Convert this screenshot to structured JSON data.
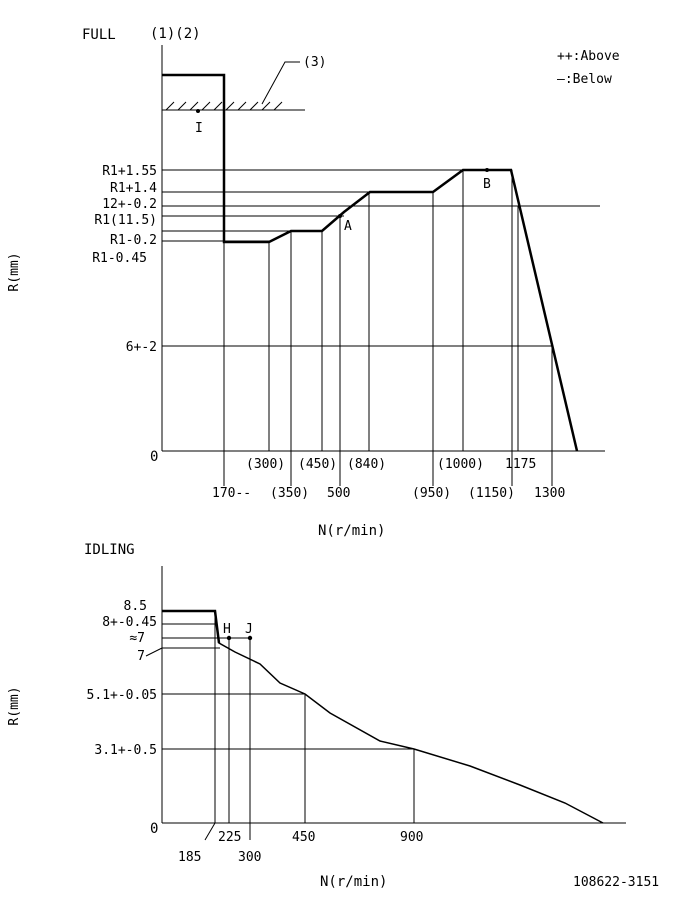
{
  "full": {
    "title": "FULL",
    "markers": "(1)(2)",
    "ref3": "(3)",
    "legend_above": "++:Above",
    "legend_below": "—:Below",
    "ylabel": "R(mm)",
    "xlabel": "N(r/min)",
    "zero": "0",
    "y_labels": [
      "R1+1.55",
      "R1+1.4",
      "12+-0.2",
      "R1(11.5)",
      "R1-0.2",
      "R1-0.45",
      "6+-2"
    ],
    "x_labels": [
      "(300)",
      "(450)",
      "(840)",
      "(1000)",
      "1175",
      "170--",
      "(350)",
      "500",
      "(950)",
      "(1150)",
      "1300"
    ],
    "point_labels": [
      "I",
      "A",
      "B"
    ]
  },
  "idling": {
    "title": "IDLING",
    "ylabel": "R(mm)",
    "xlabel": "N(r/min)",
    "zero": "0",
    "y_labels": [
      "8.5",
      "8+-0.45",
      "≈7",
      "7",
      "5.1+-0.05",
      "3.1+-0.5"
    ],
    "x_labels": [
      "225",
      "450",
      "900",
      "185",
      "300"
    ],
    "point_labels": [
      "H",
      "J"
    ]
  },
  "drawing_number": "108622-3151"
}
